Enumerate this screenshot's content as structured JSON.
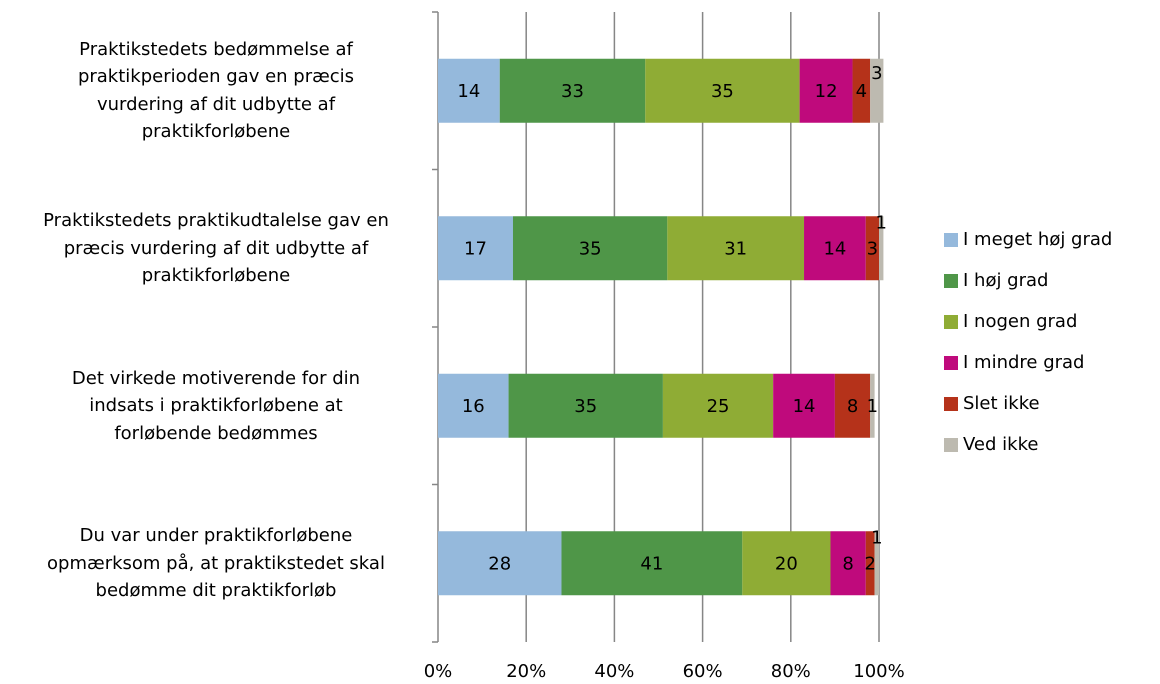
{
  "chart_data": {
    "type": "stacked_barh",
    "categories": [
      "Praktikstedets bedømmelse af\npraktikperioden gav en præcis\nvurdering af dit udbytte af\npraktikforløbene",
      "Praktikstedets praktikudtalelse gav en\npræcis vurdering af dit udbytte af\npraktikforløbene",
      "Det virkede motiverende for din\nindsats i praktikforløbene at\nforløbende bedømmes",
      "Du var under praktikforløbene\nopmærksom på, at praktikstedet skal\nbedømme dit praktikforløb"
    ],
    "series": [
      {
        "name": "I meget høj grad",
        "color": "#95b9dc",
        "values": [
          14,
          17,
          16,
          28
        ]
      },
      {
        "name": "I høj grad",
        "color": "#4f9648",
        "values": [
          33,
          35,
          35,
          41
        ]
      },
      {
        "name": "I nogen grad",
        "color": "#8fac35",
        "values": [
          35,
          31,
          25,
          20
        ]
      },
      {
        "name": "I mindre grad",
        "color": "#bf0a7c",
        "values": [
          12,
          14,
          14,
          8
        ]
      },
      {
        "name": "Slet ikke",
        "color": "#b5321a",
        "values": [
          4,
          3,
          8,
          2
        ]
      },
      {
        "name": "Ved ikke",
        "color": "#bdbab0",
        "values": [
          3,
          1,
          1,
          1
        ]
      }
    ],
    "xlim": [
      0,
      100
    ],
    "xticks": [
      {
        "value": 0,
        "label": "0%"
      },
      {
        "value": 20,
        "label": "20%"
      },
      {
        "value": 40,
        "label": "40%"
      },
      {
        "value": 60,
        "label": "60%"
      },
      {
        "value": 80,
        "label": "80%"
      },
      {
        "value": 100,
        "label": "100%"
      }
    ],
    "grid": true,
    "legend": "right"
  }
}
